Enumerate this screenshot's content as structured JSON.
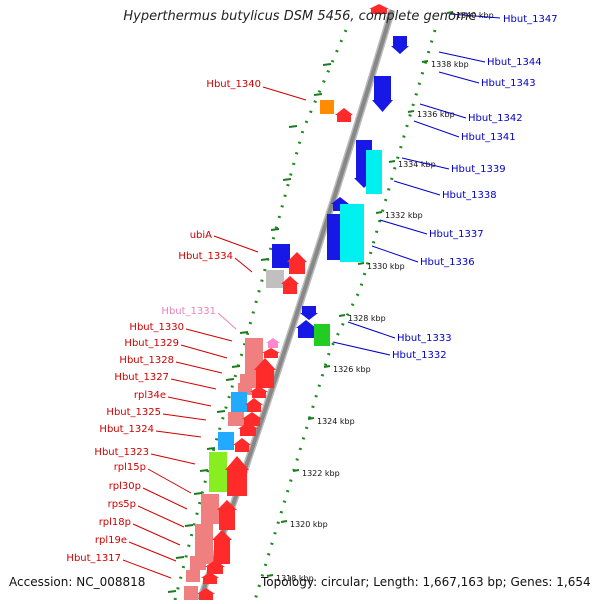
{
  "title": "Hyperthermus butylicus DSM 5456, complete genome",
  "footer": {
    "accession": "Accession: NC_008818",
    "summary": "Topology: circular; Length: 1,667,163 bp; Genes: 1,654"
  },
  "colors": {
    "left_label": "#d00000",
    "right_label": "#0000c8",
    "faded_label": "#ee82b8",
    "ruler_dots": "#1e8c1e",
    "backbone": "#888888"
  },
  "tick_labels": [
    "1340 kbp",
    "1338 kbp",
    "1336 kbp",
    "1334 kbp",
    "1332 kbp",
    "1330 kbp",
    "1328 kbp",
    "1326 kbp",
    "1324 kbp",
    "1322 kbp",
    "1320 kbp",
    "1318 kbp"
  ],
  "left_labels": [
    {
      "text": "Hbut_1340",
      "style": "red"
    },
    {
      "text": "ubiA",
      "style": "red"
    },
    {
      "text": "Hbut_1334",
      "style": "red"
    },
    {
      "text": "Hbut_1331",
      "style": "faded"
    },
    {
      "text": "Hbut_1330",
      "style": "red"
    },
    {
      "text": "Hbut_1329",
      "style": "red"
    },
    {
      "text": "Hbut_1328",
      "style": "red"
    },
    {
      "text": "Hbut_1327",
      "style": "red"
    },
    {
      "text": "rpl34e",
      "style": "red"
    },
    {
      "text": "Hbut_1325",
      "style": "red"
    },
    {
      "text": "Hbut_1324",
      "style": "red"
    },
    {
      "text": "Hbut_1323",
      "style": "red"
    },
    {
      "text": "rpl15p",
      "style": "red"
    },
    {
      "text": "rpl30p",
      "style": "red"
    },
    {
      "text": "rps5p",
      "style": "red"
    },
    {
      "text": "rpl18p",
      "style": "red"
    },
    {
      "text": "rpl19e",
      "style": "red"
    },
    {
      "text": "Hbut_1317",
      "style": "red"
    }
  ],
  "right_labels": [
    {
      "text": "Hbut_1347"
    },
    {
      "text": "Hbut_1344"
    },
    {
      "text": "Hbut_1343"
    },
    {
      "text": "Hbut_1342"
    },
    {
      "text": "Hbut_1341"
    },
    {
      "text": "Hbut_1339"
    },
    {
      "text": "Hbut_1338"
    },
    {
      "text": "Hbut_1337"
    },
    {
      "text": "Hbut_1336"
    },
    {
      "text": "Hbut_1333"
    },
    {
      "text": "Hbut_1332"
    }
  ]
}
